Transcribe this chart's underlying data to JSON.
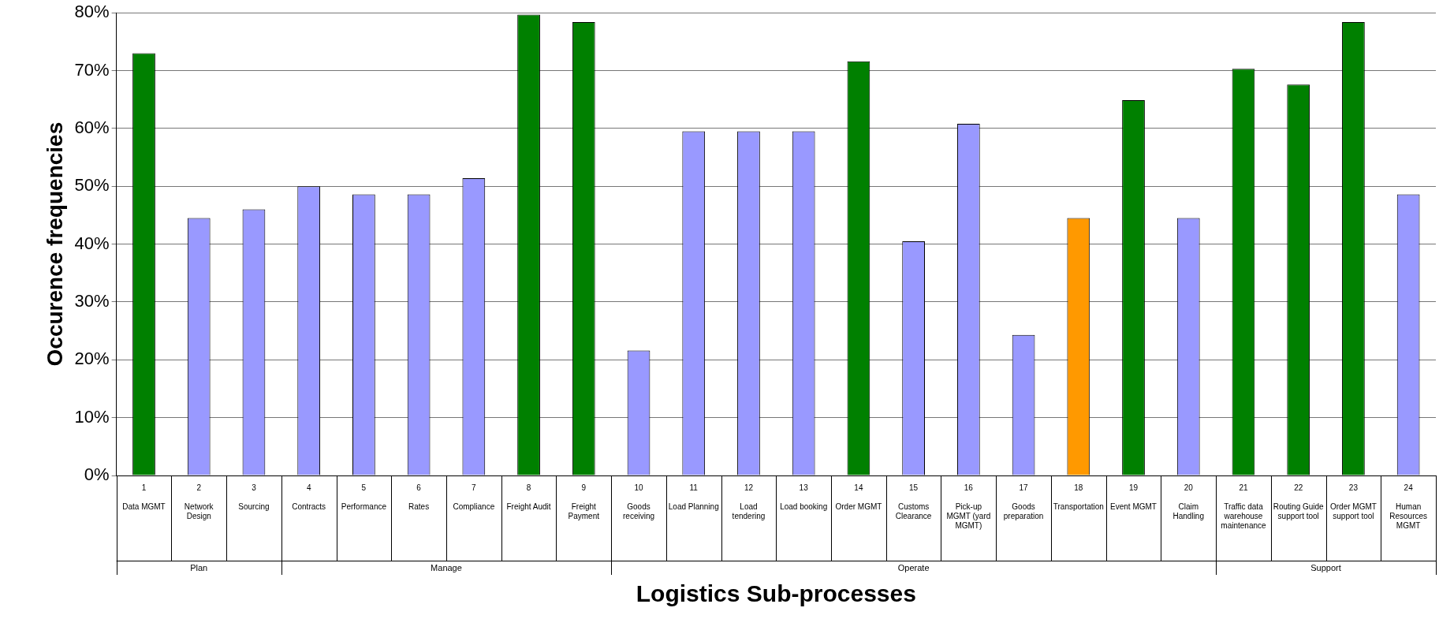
{
  "chart_data": {
    "type": "bar",
    "xlabel": "Logistics Sub-processes",
    "ylabel": "Occurence frequencies",
    "categories": [
      "1 Data MGMT",
      "2 Network Design",
      "3 Sourcing",
      "4 Contracts",
      "5 Performance",
      "6 Rates",
      "7 Compliance",
      "8 Freight Audit",
      "9 Freight Payment",
      "10 Goods receiving",
      "11 Load Planning",
      "12 Load tendering",
      "13 Load booking",
      "14 Order MGMT",
      "15 Customs Clearance",
      "16 Pick-up MGMT (yard MGMT)",
      "17 Goods preparation",
      "18 Transportation",
      "19 Event MGMT",
      "20 Claim Handling",
      "21 Traffic data warehouse maintenance",
      "22 Routing Guide support tool",
      "23 Order MGMT support tool",
      "24 Human Resources MGMT"
    ],
    "values": [
      73,
      44.5,
      46,
      50,
      48.6,
      48.6,
      51.4,
      79.7,
      78.4,
      21.6,
      59.5,
      59.5,
      59.5,
      71.6,
      40.5,
      60.8,
      24.3,
      44.5,
      64.9,
      44.5,
      70.3,
      67.6,
      78.4,
      48.6
    ],
    "colors": [
      "#008000",
      "#9999ff",
      "#9999ff",
      "#9999ff",
      "#9999ff",
      "#9999ff",
      "#9999ff",
      "#008000",
      "#008000",
      "#9999ff",
      "#9999ff",
      "#9999ff",
      "#9999ff",
      "#008000",
      "#9999ff",
      "#9999ff",
      "#9999ff",
      "#ff9900",
      "#008000",
      "#9999ff",
      "#008000",
      "#008000",
      "#008000",
      "#9999ff"
    ],
    "ylim": [
      0,
      80
    ],
    "yticks": [
      {
        "value": 0,
        "label": "0%"
      },
      {
        "value": 10,
        "label": "10%"
      },
      {
        "value": 20,
        "label": "20%"
      },
      {
        "value": 30,
        "label": "30%"
      },
      {
        "value": 40,
        "label": "40%"
      },
      {
        "value": 50,
        "label": "50%"
      },
      {
        "value": 60,
        "label": "60%"
      },
      {
        "value": 70,
        "label": "70%"
      },
      {
        "value": 80,
        "label": "80%"
      }
    ],
    "grid": "y",
    "legend": false,
    "annotations": [
      "Plan",
      "Manage",
      "Operate",
      "Support"
    ]
  }
}
